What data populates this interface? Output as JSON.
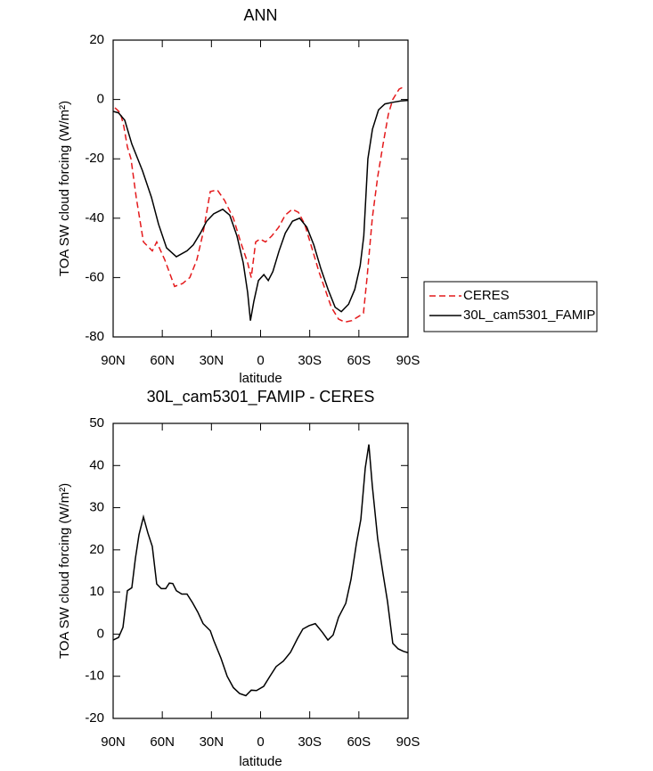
{
  "chart_data": [
    {
      "type": "line",
      "title": "ANN",
      "x_label": "latitude",
      "y_label": "TOA SW cloud forcing (W/m²)",
      "xlim": [
        90,
        -90
      ],
      "xticks": [
        {
          "value": 90,
          "label": "90N"
        },
        {
          "value": 60,
          "label": "60N"
        },
        {
          "value": 30,
          "label": "30N"
        },
        0,
        {
          "value": -30,
          "label": "30S"
        },
        {
          "value": -60,
          "label": "60S"
        },
        {
          "value": -90,
          "label": "90S"
        }
      ],
      "ylim": [
        -80,
        20
      ],
      "yticks": [
        -80,
        -60,
        -40,
        -20,
        0,
        20
      ],
      "legend": "right",
      "series": [
        {
          "name": "CERES",
          "color": "#e41a1c",
          "line_style": "dashed",
          "x": [
            88.9,
            85.6,
            83.5,
            81.3,
            79.1,
            75.9,
            71.5,
            66.1,
            63.4,
            58.5,
            52.5,
            47.6,
            43.2,
            38.9,
            35.1,
            30.7,
            26.4,
            22.0,
            16.6,
            12.2,
            7.9,
            5.7,
            3.0,
            0.3,
            -3.0,
            -6.8,
            -11.1,
            -15.0,
            -19.3,
            -23.1,
            -26.9,
            -31.3,
            -35.6,
            -39.4,
            -43.2,
            -47.6,
            -51.4,
            -55.7,
            -60.1,
            -62.8,
            -65.0,
            -68.2,
            -71.5,
            -74.8,
            -78.0,
            -80.7,
            -84.6,
            -88.4
          ],
          "values": [
            -2.8,
            -4.5,
            -9,
            -16,
            -20,
            -33,
            -48,
            -51,
            -48,
            -54,
            -63,
            -62,
            -60,
            -54,
            -45,
            -31,
            -30.5,
            -34,
            -40,
            -48,
            -55,
            -60,
            -48,
            -47,
            -48,
            -46,
            -43,
            -39,
            -37,
            -38,
            -42,
            -50,
            -58,
            -64,
            -70,
            -74,
            -75,
            -74.5,
            -73,
            -72,
            -60,
            -40,
            -26,
            -15,
            -5,
            0,
            3.5,
            4.5
          ]
        },
        {
          "name": "30L_cam5301_FAMIP",
          "color": "#000000",
          "line_style": "solid",
          "x": [
            90,
            86.7,
            82.9,
            78.6,
            72.1,
            66.6,
            62.3,
            57.4,
            51.4,
            44.9,
            41.1,
            36.7,
            32.9,
            28.6,
            23.1,
            18.8,
            14.4,
            10.6,
            7.9,
            6.2,
            4.1,
            1.3,
            -2.0,
            -4.7,
            -7.5,
            -11.3,
            -15.1,
            -19.5,
            -23.8,
            -28.2,
            -32.5,
            -36.8,
            -41.2,
            -45.5,
            -49.3,
            -53.7,
            -57.5,
            -60.8,
            -63.0,
            -65.5,
            -68.3,
            -72.0,
            -75.9,
            -80.2,
            -85.6,
            -90
          ],
          "values": [
            -4,
            -4.5,
            -7,
            -15,
            -24,
            -33,
            -42,
            -50,
            -53,
            -51,
            -49,
            -45,
            -41,
            -38.5,
            -37,
            -39,
            -46,
            -55,
            -65,
            -74.5,
            -68,
            -61,
            -59,
            -61,
            -58,
            -51,
            -45,
            -41,
            -40,
            -43,
            -49,
            -57,
            -64,
            -70,
            -71.5,
            -69,
            -64,
            -56,
            -46,
            -20,
            -10,
            -3.5,
            -1.5,
            -1,
            -0.5,
            -0.3
          ]
        }
      ]
    },
    {
      "type": "line",
      "title": "30L_cam5301_FAMIP - CERES",
      "x_label": "latitude",
      "y_label": "TOA SW cloud forcing (W/m²)",
      "xlim": [
        90,
        -90
      ],
      "xticks": [
        {
          "value": 90,
          "label": "90N"
        },
        {
          "value": 60,
          "label": "60N"
        },
        {
          "value": 30,
          "label": "30N"
        },
        0,
        {
          "value": -30,
          "label": "30S"
        },
        {
          "value": -60,
          "label": "60S"
        },
        {
          "value": -90,
          "label": "90S"
        }
      ],
      "ylim": [
        -20,
        50
      ],
      "yticks": [
        -20,
        -10,
        0,
        10,
        20,
        30,
        40,
        50
      ],
      "series": [
        {
          "color": "#000000",
          "line_style": "solid",
          "x": [
            90,
            86.7,
            84.0,
            81.3,
            78.6,
            76.4,
            74.2,
            71.5,
            68.8,
            66.1,
            63.4,
            60.6,
            57.9,
            55.7,
            53.6,
            51.4,
            48.1,
            44.9,
            41.6,
            38.3,
            35.1,
            30.7,
            28.6,
            24.2,
            20.4,
            16.6,
            12.8,
            9.0,
            5.7,
            2.5,
            -1.9,
            -5.7,
            -9.5,
            -13.9,
            -18.3,
            -22.6,
            -25.8,
            -29.6,
            -33.4,
            -37.8,
            -41.1,
            -44.3,
            -47.6,
            -52.0,
            -55.2,
            -58.5,
            -61.2,
            -63.9,
            -66.1,
            -68.2,
            -71.5,
            -74.8,
            -77.5,
            -80.7,
            -84.0,
            -87.3,
            -90
          ],
          "values": [
            -1.4,
            -0.8,
            1.6,
            10.3,
            11,
            18,
            23.6,
            27.8,
            24,
            20.8,
            11.9,
            10.8,
            10.8,
            12.1,
            12,
            10.3,
            9.5,
            9.5,
            7.5,
            5.2,
            2.5,
            0.8,
            -1.5,
            -5.7,
            -10,
            -12.7,
            -14.1,
            -14.6,
            -13.3,
            -13.4,
            -12.4,
            -10,
            -7.7,
            -6.4,
            -4.3,
            -1,
            1.2,
            2,
            2.5,
            0.4,
            -1.4,
            -0.2,
            4,
            7.3,
            13,
            21.5,
            27.2,
            39.4,
            45,
            35.2,
            22.6,
            14.2,
            7.7,
            -2.2,
            -3.5,
            -4.1,
            -4.4
          ]
        }
      ]
    }
  ]
}
